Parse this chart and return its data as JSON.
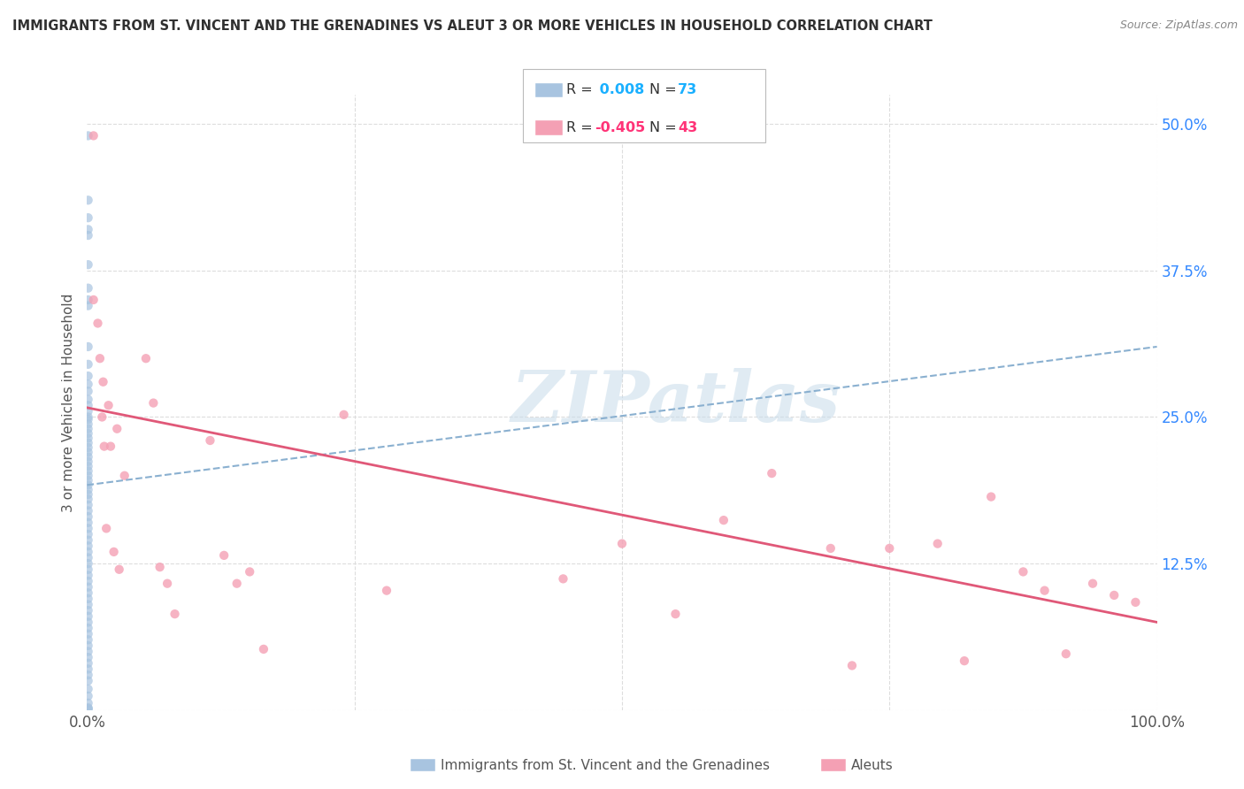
{
  "title": "IMMIGRANTS FROM ST. VINCENT AND THE GRENADINES VS ALEUT 3 OR MORE VEHICLES IN HOUSEHOLD CORRELATION CHART",
  "source": "Source: ZipAtlas.com",
  "ylabel": "3 or more Vehicles in Household",
  "legend_label_blue": "Immigrants from St. Vincent and the Grenadines",
  "legend_label_pink": "Aleuts",
  "blue_r": "0.008",
  "blue_n": "73",
  "pink_r": "-0.405",
  "pink_n": "43",
  "blue_scatter_x": [
    0.001,
    0.001,
    0.001,
    0.001,
    0.001,
    0.001,
    0.001,
    0.001,
    0.001,
    0.001,
    0.001,
    0.001,
    0.001,
    0.001,
    0.001,
    0.001,
    0.001,
    0.001,
    0.001,
    0.001,
    0.001,
    0.001,
    0.001,
    0.001,
    0.001,
    0.001,
    0.001,
    0.001,
    0.001,
    0.001,
    0.001,
    0.001,
    0.001,
    0.001,
    0.001,
    0.001,
    0.001,
    0.001,
    0.001,
    0.001,
    0.001,
    0.001,
    0.001,
    0.001,
    0.001,
    0.001,
    0.001,
    0.001,
    0.001,
    0.001,
    0.001,
    0.001,
    0.001,
    0.001,
    0.001,
    0.001,
    0.001,
    0.001,
    0.001,
    0.001,
    0.001,
    0.001,
    0.001,
    0.001,
    0.001,
    0.001,
    0.001,
    0.001,
    0.001,
    0.001,
    0.001,
    0.001,
    0.001
  ],
  "blue_scatter_y": [
    0.49,
    0.435,
    0.42,
    0.41,
    0.405,
    0.38,
    0.36,
    0.35,
    0.345,
    0.31,
    0.295,
    0.285,
    0.278,
    0.272,
    0.265,
    0.26,
    0.255,
    0.25,
    0.248,
    0.244,
    0.24,
    0.236,
    0.232,
    0.228,
    0.224,
    0.22,
    0.216,
    0.212,
    0.208,
    0.204,
    0.2,
    0.196,
    0.192,
    0.188,
    0.184,
    0.18,
    0.175,
    0.17,
    0.165,
    0.16,
    0.155,
    0.15,
    0.145,
    0.14,
    0.135,
    0.13,
    0.125,
    0.12,
    0.115,
    0.11,
    0.105,
    0.1,
    0.095,
    0.09,
    0.085,
    0.08,
    0.075,
    0.07,
    0.065,
    0.06,
    0.055,
    0.05,
    0.045,
    0.04,
    0.035,
    0.03,
    0.025,
    0.018,
    0.012,
    0.006,
    0.002,
    0.001,
    0.001
  ],
  "pink_scatter_x": [
    0.006,
    0.006,
    0.01,
    0.012,
    0.014,
    0.015,
    0.016,
    0.018,
    0.02,
    0.022,
    0.025,
    0.028,
    0.03,
    0.035,
    0.055,
    0.062,
    0.068,
    0.075,
    0.082,
    0.115,
    0.128,
    0.14,
    0.152,
    0.165,
    0.24,
    0.28,
    0.445,
    0.5,
    0.55,
    0.595,
    0.64,
    0.695,
    0.715,
    0.75,
    0.795,
    0.82,
    0.845,
    0.875,
    0.895,
    0.915,
    0.94,
    0.96,
    0.98
  ],
  "pink_scatter_y": [
    0.49,
    0.35,
    0.33,
    0.3,
    0.25,
    0.28,
    0.225,
    0.155,
    0.26,
    0.225,
    0.135,
    0.24,
    0.12,
    0.2,
    0.3,
    0.262,
    0.122,
    0.108,
    0.082,
    0.23,
    0.132,
    0.108,
    0.118,
    0.052,
    0.252,
    0.102,
    0.112,
    0.142,
    0.082,
    0.162,
    0.202,
    0.138,
    0.038,
    0.138,
    0.142,
    0.042,
    0.182,
    0.118,
    0.102,
    0.048,
    0.108,
    0.098,
    0.092
  ],
  "blue_line_x": [
    0.0,
    1.0
  ],
  "blue_line_y": [
    0.192,
    0.31
  ],
  "pink_line_x": [
    0.0,
    1.0
  ],
  "pink_line_y": [
    0.258,
    0.075
  ],
  "xlim": [
    0.0,
    1.0
  ],
  "ylim": [
    0.0,
    0.525
  ],
  "color_blue_scatter": "#a8c4e0",
  "color_blue_line": "#8ab0d0",
  "color_pink_scatter": "#f4a0b4",
  "color_pink_line": "#e05878",
  "color_title": "#303030",
  "color_source": "#888888",
  "color_grid": "#dddddd",
  "color_r_blue": "#1ab0ff",
  "color_r_pink": "#ff3377",
  "color_right_axis": "#3388ff",
  "watermark": "ZIPatlas",
  "scatter_size": 55
}
